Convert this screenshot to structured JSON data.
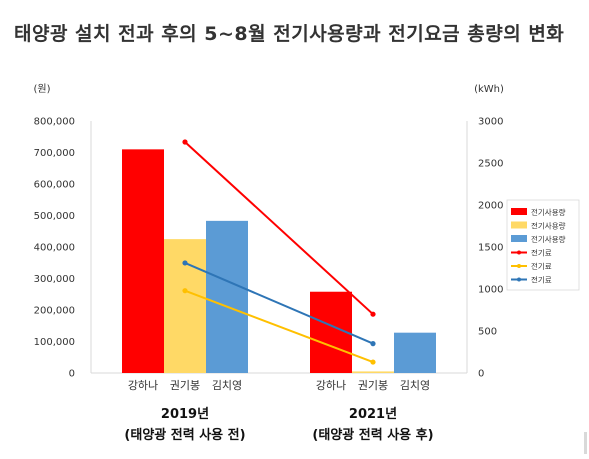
{
  "title": "태양광 설치 전과 후의 5~8월 전기사용량과 전기요금 총량의 변화",
  "chart_data": {
    "type": "bar",
    "title": "태양광 설치 전과 후의 5~8월 전기사용량과 전기요금 총량의 변화",
    "groups": [
      {
        "year": "2019년",
        "note": "(태양광 전력 사용 전)",
        "categories": [
          "강하나",
          "권기봉",
          "김치영"
        ]
      },
      {
        "year": "2021년",
        "note": "(태양광 전력 사용 후)",
        "categories": [
          "강하나",
          "권기봉",
          "김치영"
        ]
      }
    ],
    "left_axis": {
      "unit": "(원)",
      "min": 0,
      "max": 800000,
      "step": 100000,
      "tick_labels": [
        "0",
        "100,000",
        "200,000",
        "300,000",
        "400,000",
        "500,000",
        "600,000",
        "700,000",
        "800,000"
      ]
    },
    "right_axis": {
      "unit": "(kWh)",
      "min": 0,
      "max": 3000,
      "step": 500,
      "tick_labels": [
        "0",
        "500",
        "1000",
        "1500",
        "2000",
        "2500",
        "3000"
      ]
    },
    "bar_values": [
      [
        710000,
        425000,
        483000
      ],
      [
        258000,
        5000,
        128000
      ]
    ],
    "series": [
      {
        "name": "전기사용량",
        "kind": "bar",
        "color": "#ff0000",
        "axis": "left"
      },
      {
        "name": "전기사용량",
        "kind": "bar",
        "color": "#ffd966",
        "axis": "left"
      },
      {
        "name": "전기사용량",
        "kind": "bar",
        "color": "#5b9bd5",
        "axis": "left"
      },
      {
        "name": "전기료",
        "kind": "line",
        "color": "#ff0000",
        "axis": "right",
        "values": [
          2750,
          700
        ]
      },
      {
        "name": "전기료",
        "kind": "line",
        "color": "#ffc000",
        "axis": "right",
        "values": [
          980,
          130
        ]
      },
      {
        "name": "전기료",
        "kind": "line",
        "color": "#2e75b6",
        "axis": "right",
        "values": [
          1310,
          350
        ]
      }
    ],
    "legend_position": "right",
    "grid": false
  }
}
